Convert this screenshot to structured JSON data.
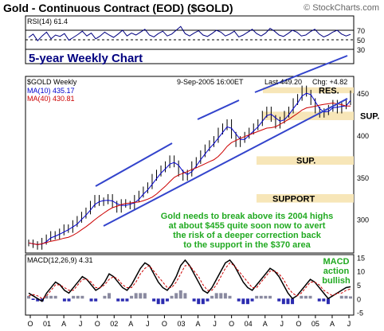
{
  "chart_title": "Gold - Continuous Contract (EOD) ($GOLD)",
  "copyright": "© StockCharts.com",
  "colors": {
    "rsi_line": "#000080",
    "price_bars": "#000000",
    "ma10": "#0000cc",
    "ma40": "#cc0000",
    "trendline": "#3344cc",
    "zone_fill": "#f7e6b8",
    "annotation_text": "#22aa22",
    "macd_line": "#000000",
    "macd_signal": "#cc0000",
    "macd_hist_pos": "#8a8aa0",
    "macd_hist_neg": "#2b2bb0"
  },
  "chart_data": [
    {
      "type": "line",
      "panel": "rsi",
      "label": "RSI(14) 61.4",
      "ylim": [
        0,
        100
      ],
      "y_ticks": [
        "70",
        "50",
        "30"
      ],
      "reference_lines": [
        70,
        50,
        30
      ],
      "values": [
        55,
        62,
        48,
        58,
        66,
        52,
        60,
        57,
        63,
        49,
        55,
        61,
        68,
        58,
        64,
        52,
        58,
        66,
        60,
        55,
        62,
        70,
        58,
        64,
        60,
        66,
        72,
        60,
        56,
        63,
        68,
        58,
        62,
        70,
        78,
        63,
        58,
        64,
        69,
        60,
        57,
        63,
        70,
        66,
        58,
        62,
        68,
        56,
        60,
        66,
        72,
        63,
        58,
        64,
        74,
        68,
        60,
        57,
        63,
        70,
        66,
        58,
        60,
        67,
        72,
        62,
        56,
        60,
        66,
        70,
        62,
        58,
        61.4
      ],
      "annotation": "5-year Weekly Chart"
    },
    {
      "type": "candlestick",
      "panel": "price",
      "label": "$GOLD Weekly",
      "date_label": "9-Sep-2005 16:00ET",
      "last": "Last 449.20",
      "change": "Chg: +4.82",
      "legend": [
        {
          "name": "MA(10) 435.17",
          "color": "#0000cc"
        },
        {
          "name": "MA(40) 430.81",
          "color": "#cc0000"
        }
      ],
      "ylim": [
        260,
        470
      ],
      "y_ticks": [
        "450",
        "400",
        "350",
        "300"
      ],
      "close_values": [
        272,
        270,
        268,
        274,
        278,
        282,
        280,
        285,
        290,
        288,
        295,
        300,
        305,
        310,
        318,
        325,
        320,
        322,
        326,
        318,
        312,
        320,
        318,
        316,
        325,
        330,
        335,
        340,
        350,
        355,
        360,
        365,
        372,
        366,
        355,
        350,
        355,
        365,
        370,
        378,
        385,
        390,
        395,
        405,
        410,
        415,
        400,
        390,
        395,
        400,
        405,
        410,
        415,
        425,
        430,
        420,
        412,
        418,
        425,
        430,
        440,
        445,
        455,
        450,
        440,
        430,
        425,
        428,
        432,
        438,
        430,
        435,
        440,
        449.2
      ],
      "zones": [
        {
          "label": "RES.",
          "low": 450,
          "high": 457
        },
        {
          "label": "SUP.",
          "low": 418,
          "high": 428
        },
        {
          "label": "SUP.",
          "low": 365,
          "high": 375
        },
        {
          "label": "SUPPORT",
          "low": 320,
          "high": 330
        }
      ],
      "annotations": [
        "Gold needs to break above its 2004 highs",
        "at about $455 quite soon now to avert",
        "the risk of a deeper correction back",
        "to the support in the $370 area"
      ]
    },
    {
      "type": "line",
      "panel": "macd",
      "label": "MACD(12,26,9) 4.31",
      "ylim": [
        -6,
        16
      ],
      "y_ticks": [
        "15",
        "10",
        "5",
        "0",
        "-5"
      ],
      "macd": [
        2,
        1,
        0,
        -1,
        2,
        4,
        6,
        5,
        3,
        2,
        4,
        6,
        8,
        7,
        5,
        3,
        4,
        6,
        9,
        8,
        6,
        4,
        3,
        5,
        8,
        11,
        13,
        12,
        9,
        6,
        4,
        3,
        5,
        8,
        12,
        14,
        12,
        9,
        6,
        3,
        2,
        4,
        7,
        10,
        13,
        14,
        12,
        9,
        6,
        4,
        3,
        5,
        7,
        9,
        11,
        10,
        8,
        5,
        2,
        0,
        1,
        3,
        5,
        7,
        6,
        4,
        2,
        0,
        1,
        2,
        3,
        4,
        4.31
      ],
      "signal": [
        1,
        1.5,
        1,
        0,
        1,
        3,
        5,
        5,
        4,
        3,
        3,
        5,
        7,
        7,
        6,
        4,
        4,
        5,
        7,
        8,
        7,
        5,
        4,
        4,
        6,
        9,
        11,
        12,
        10,
        8,
        6,
        4,
        4,
        6,
        9,
        12,
        12,
        10,
        8,
        5,
        3,
        3,
        5,
        8,
        11,
        13,
        12,
        10,
        8,
        6,
        4,
        4,
        6,
        8,
        10,
        10,
        9,
        7,
        4,
        2,
        1,
        2,
        4,
        6,
        6,
        5,
        3,
        2,
        1,
        2,
        2,
        3,
        3.5
      ],
      "annotations": [
        "MACD",
        "action",
        "bullish"
      ]
    }
  ],
  "x_axis_labels": [
    "O",
    "01",
    "A",
    "J",
    "O",
    "02",
    "A",
    "J",
    "O",
    "03",
    "A",
    "J",
    "O",
    "04",
    "A",
    "J",
    "O",
    "05",
    "A",
    "J"
  ]
}
